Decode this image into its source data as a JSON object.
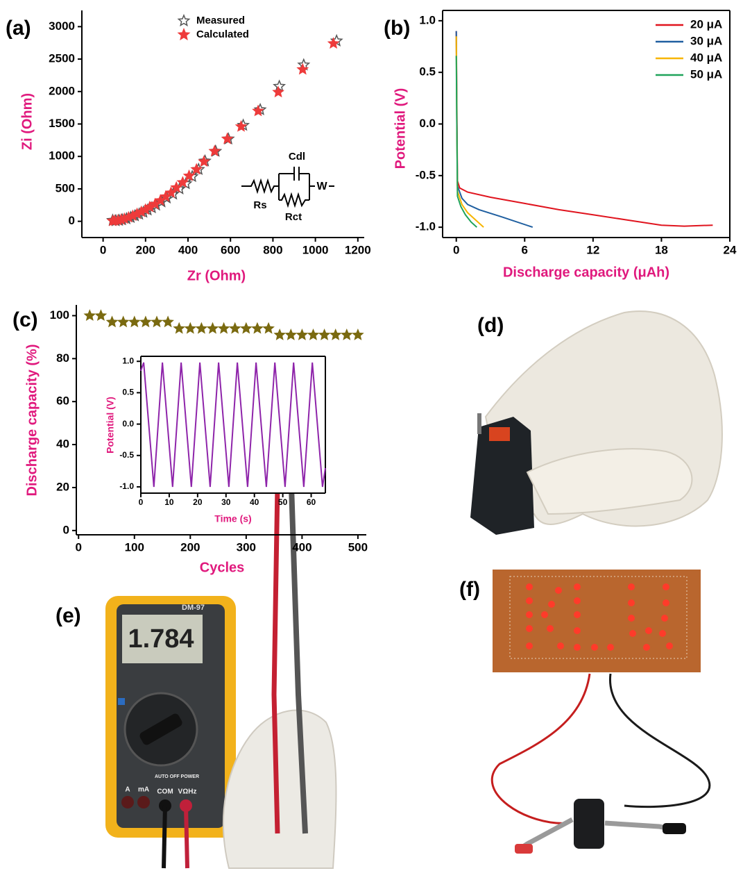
{
  "chart_data": [
    {
      "type": "scatter",
      "panel": "(a)",
      "x_label": "Zr (Ohm)",
      "y_label": "Zi (Ohm)",
      "label_color": "#e0197d",
      "xlim": [
        -100,
        1230
      ],
      "ylim": [
        -250,
        3250
      ],
      "xticks": [
        0,
        200,
        400,
        600,
        800,
        1000,
        1200
      ],
      "yticks": [
        0,
        500,
        1000,
        1500,
        2000,
        2500,
        3000
      ],
      "box": false,
      "legend": "top",
      "annotations": [
        "Cdl",
        "Rs",
        "Rct",
        "W"
      ],
      "series": [
        {
          "name": "Measured",
          "color": "#555555",
          "filled": false,
          "x": [
            45,
            60,
            75,
            90,
            110,
            130,
            150,
            170,
            190,
            210,
            230,
            250,
            275,
            300,
            330,
            360,
            390,
            420,
            450,
            480,
            530,
            590,
            660,
            740,
            830,
            945,
            1100
          ],
          "values": [
            15,
            10,
            15,
            25,
            40,
            60,
            85,
            110,
            140,
            175,
            210,
            250,
            300,
            360,
            420,
            500,
            580,
            690,
            800,
            930,
            1080,
            1270,
            1480,
            1720,
            2080,
            2410,
            2780
          ]
        },
        {
          "name": "Calculated",
          "color": "#ee3b3b",
          "filled": true,
          "x": [
            45,
            55,
            70,
            85,
            100,
            120,
            140,
            160,
            180,
            200,
            220,
            245,
            270,
            295,
            320,
            345,
            375,
            405,
            440,
            475,
            525,
            585,
            650,
            730,
            825,
            940,
            1085
          ],
          "values": [
            5,
            10,
            15,
            25,
            40,
            60,
            85,
            115,
            145,
            180,
            220,
            265,
            320,
            380,
            440,
            520,
            600,
            700,
            800,
            920,
            1080,
            1270,
            1460,
            1700,
            1990,
            2340,
            2740
          ]
        }
      ]
    },
    {
      "type": "line",
      "panel": "(b)",
      "x_label": "Discharge capacity (μAh)",
      "y_label": "Potential (V)",
      "label_color": "#e0197d",
      "xlim": [
        -1.2,
        24
      ],
      "ylim": [
        -1.1,
        1.1
      ],
      "xticks": [
        0,
        6,
        12,
        18,
        24
      ],
      "yticks": [
        {
          "value": -1,
          "label": "-1.0"
        },
        -0.5,
        {
          "value": 0,
          "label": "0.0"
        },
        0.5,
        {
          "value": 1,
          "label": "1.0"
        }
      ],
      "box": true,
      "legend": "top-right",
      "series": [
        {
          "name": "20 μA",
          "color": "#e0141e",
          "x": [
            0,
            0.05,
            0.1,
            0.3,
            1,
            3,
            6,
            9,
            12,
            15,
            18,
            20,
            22.5
          ],
          "values": [
            0.9,
            0.2,
            -0.55,
            -0.62,
            -0.66,
            -0.71,
            -0.77,
            -0.83,
            -0.88,
            -0.93,
            -0.98,
            -0.99,
            -0.98
          ]
        },
        {
          "name": "30 μA",
          "color": "#1f5fa0",
          "x": [
            0,
            0.05,
            0.1,
            0.5,
            1,
            2,
            4,
            6.7
          ],
          "values": [
            0.9,
            0,
            -0.6,
            -0.72,
            -0.78,
            -0.83,
            -0.9,
            -1.0
          ]
        },
        {
          "name": "40 μA",
          "color": "#f7b500",
          "x": [
            0,
            0.05,
            0.1,
            0.5,
            1,
            1.7,
            2.4
          ],
          "values": [
            0.85,
            0,
            -0.65,
            -0.78,
            -0.86,
            -0.93,
            -1.0
          ]
        },
        {
          "name": "50 μA",
          "color": "#1fa35a",
          "x": [
            0,
            0.05,
            0.1,
            0.4,
            0.8,
            1.3,
            1.8
          ],
          "values": [
            0.66,
            0,
            -0.7,
            -0.8,
            -0.88,
            -0.95,
            -1.0
          ]
        }
      ]
    },
    {
      "type": "scatter",
      "panel": "(c)",
      "x_label": "Cycles",
      "y_label": "Discharge capacity (%)",
      "label_color": "#e0197d",
      "xlim": [
        -4,
        515
      ],
      "ylim": [
        -2,
        105
      ],
      "xticks": [
        0,
        100,
        200,
        300,
        400,
        500
      ],
      "yticks": [
        0,
        20,
        40,
        60,
        80,
        100
      ],
      "box": false,
      "color": "#7a6a10",
      "filled": true,
      "x": [
        20,
        40,
        60,
        80,
        100,
        120,
        140,
        160,
        180,
        200,
        220,
        240,
        260,
        280,
        300,
        320,
        340,
        360,
        380,
        400,
        420,
        440,
        460,
        480,
        500
      ],
      "values": [
        100,
        100,
        97,
        97,
        97,
        97,
        97,
        97,
        94,
        94,
        94,
        94,
        94,
        94,
        94,
        94,
        94,
        91,
        91,
        91,
        91,
        91,
        91,
        91,
        91
      ]
    },
    {
      "type": "line",
      "x_label": "Time (s)",
      "y_label": "Potential (V)",
      "label_color": "#e0197d",
      "xlim": [
        0,
        65
      ],
      "ylim": [
        -1.1,
        1.08
      ],
      "xticks": [
        0,
        10,
        20,
        30,
        40,
        50,
        60
      ],
      "yticks": [
        {
          "value": -1,
          "label": "-1.0"
        },
        -0.5,
        {
          "value": 0,
          "label": "0.0"
        },
        0.5,
        {
          "value": 1,
          "label": "1.0"
        }
      ],
      "box": true,
      "color": "#8e24aa",
      "x": [
        0,
        1,
        4.6,
        7.6,
        11.2,
        14.2,
        17.8,
        20.8,
        24.4,
        27.4,
        31,
        34,
        37.6,
        40.6,
        44.2,
        47.2,
        50.8,
        53.8,
        57.4,
        60.4,
        64,
        65
      ],
      "values": [
        0.85,
        0.98,
        -1.0,
        0.98,
        -1.0,
        0.98,
        -1.0,
        0.98,
        -1.0,
        0.98,
        -1.0,
        0.98,
        -1.0,
        0.98,
        -1.0,
        0.98,
        -1.0,
        0.98,
        -1.0,
        0.98,
        -1.0,
        -0.7
      ]
    }
  ],
  "photos": [
    {
      "label": "(d)"
    },
    {
      "label": "(e)",
      "texts": [
        "DM-97",
        "1.784",
        "COM",
        "VΩHz",
        "A",
        "mA",
        "AUTO OFF POWER"
      ]
    },
    {
      "label": "(f)"
    }
  ]
}
